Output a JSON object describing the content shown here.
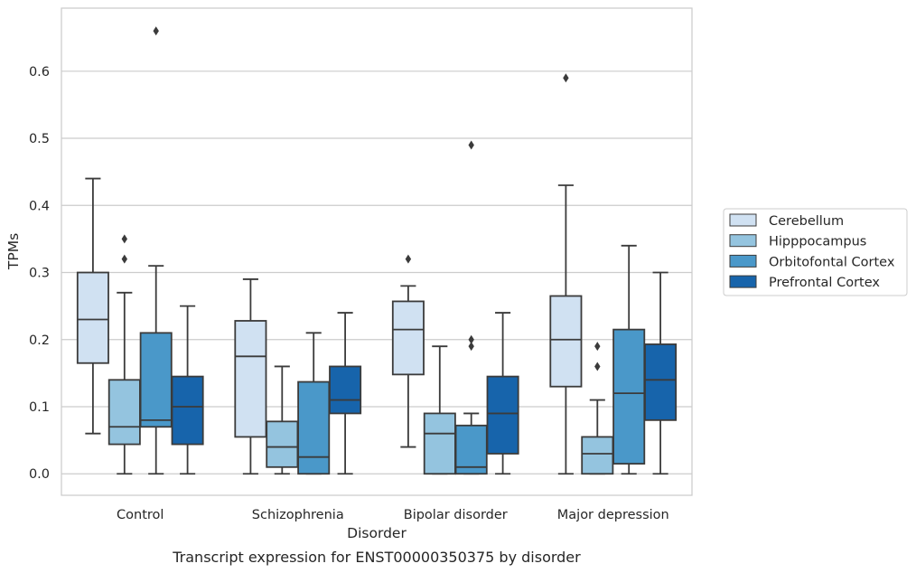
{
  "chart_data": {
    "type": "box",
    "caption": "Transcript expression for ENST00000350375 by disorder",
    "xlabel": "Disorder",
    "ylabel": "TPMs",
    "ylim": [
      -0.032,
      0.694
    ],
    "yticks": [
      0.0,
      0.1,
      0.2,
      0.3,
      0.4,
      0.5,
      0.6
    ],
    "ytick_labels": [
      "0.0",
      "0.1",
      "0.2",
      "0.3",
      "0.4",
      "0.5",
      "0.6"
    ],
    "grid": "horizontal",
    "legend_position": "right",
    "categories": [
      "Control",
      "Schizophrenia",
      "Bipolar disorder",
      "Major depression"
    ],
    "series": [
      {
        "name": "Cerebellum",
        "color": "#d0e1f2",
        "boxes": [
          {
            "whisker_low": 0.06,
            "q1": 0.165,
            "median": 0.23,
            "q3": 0.3,
            "whisker_high": 0.44,
            "outliers": []
          },
          {
            "whisker_low": 0.0,
            "q1": 0.055,
            "median": 0.175,
            "q3": 0.228,
            "whisker_high": 0.29,
            "outliers": []
          },
          {
            "whisker_low": 0.04,
            "q1": 0.148,
            "median": 0.215,
            "q3": 0.257,
            "whisker_high": 0.28,
            "outliers": [
              0.32
            ]
          },
          {
            "whisker_low": 0.0,
            "q1": 0.13,
            "median": 0.2,
            "q3": 0.265,
            "whisker_high": 0.43,
            "outliers": [
              0.59
            ]
          }
        ]
      },
      {
        "name": "Hipppocampus",
        "color": "#94c4df",
        "boxes": [
          {
            "whisker_low": 0.0,
            "q1": 0.044,
            "median": 0.07,
            "q3": 0.14,
            "whisker_high": 0.27,
            "outliers": [
              0.32,
              0.35
            ]
          },
          {
            "whisker_low": 0.0,
            "q1": 0.01,
            "median": 0.04,
            "q3": 0.078,
            "whisker_high": 0.16,
            "outliers": []
          },
          {
            "whisker_low": 0.0,
            "q1": 0.0,
            "median": 0.06,
            "q3": 0.09,
            "whisker_high": 0.19,
            "outliers": []
          },
          {
            "whisker_low": 0.0,
            "q1": 0.0,
            "median": 0.03,
            "q3": 0.055,
            "whisker_high": 0.11,
            "outliers": [
              0.16,
              0.19
            ]
          }
        ]
      },
      {
        "name": "Orbitofontal Cortex",
        "color": "#4a98c9",
        "boxes": [
          {
            "whisker_low": 0.0,
            "q1": 0.07,
            "median": 0.08,
            "q3": 0.21,
            "whisker_high": 0.31,
            "outliers": [
              0.66
            ]
          },
          {
            "whisker_low": 0.0,
            "q1": 0.0,
            "median": 0.025,
            "q3": 0.137,
            "whisker_high": 0.21,
            "outliers": []
          },
          {
            "whisker_low": 0.0,
            "q1": 0.0,
            "median": 0.01,
            "q3": 0.072,
            "whisker_high": 0.09,
            "outliers": [
              0.19,
              0.2,
              0.49
            ]
          },
          {
            "whisker_low": 0.0,
            "q1": 0.015,
            "median": 0.12,
            "q3": 0.215,
            "whisker_high": 0.34,
            "outliers": []
          }
        ]
      },
      {
        "name": "Prefrontal Cortex",
        "color": "#1764ab",
        "boxes": [
          {
            "whisker_low": 0.0,
            "q1": 0.044,
            "median": 0.1,
            "q3": 0.145,
            "whisker_high": 0.25,
            "outliers": []
          },
          {
            "whisker_low": 0.0,
            "q1": 0.09,
            "median": 0.11,
            "q3": 0.16,
            "whisker_high": 0.24,
            "outliers": []
          },
          {
            "whisker_low": 0.0,
            "q1": 0.03,
            "median": 0.09,
            "q3": 0.145,
            "whisker_high": 0.24,
            "outliers": []
          },
          {
            "whisker_low": 0.0,
            "q1": 0.08,
            "median": 0.14,
            "q3": 0.193,
            "whisker_high": 0.3,
            "outliers": []
          }
        ]
      }
    ]
  }
}
